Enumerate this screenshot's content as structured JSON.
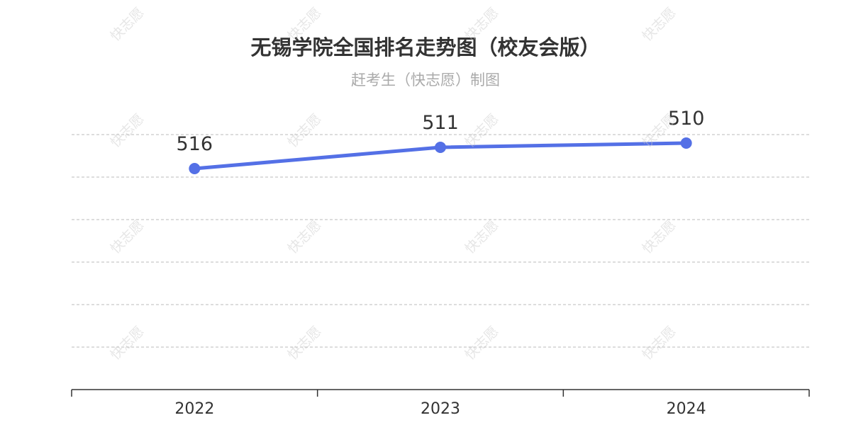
{
  "header": {
    "title": "无锡学院全国排名走势图（校友会版）",
    "subtitle": "赶考生（快志愿）制图"
  },
  "watermark": "快志愿",
  "colors": {
    "line": "#5470e6",
    "grid": "#bbbbbb",
    "axis": "#333333",
    "label": "#333333",
    "title": "#333333",
    "subtitle": "#aaaaaa"
  },
  "chart_data": {
    "type": "line",
    "title": "无锡学院全国排名走势图（校友会版）",
    "subtitle": "赶考生（快志愿）制图",
    "categories": [
      "2022",
      "2023",
      "2024"
    ],
    "series": [
      {
        "values": [
          516,
          511,
          510
        ]
      }
    ],
    "y_inverted": true,
    "yaxis_labels_visible": false,
    "grid": true,
    "legend": "none"
  }
}
